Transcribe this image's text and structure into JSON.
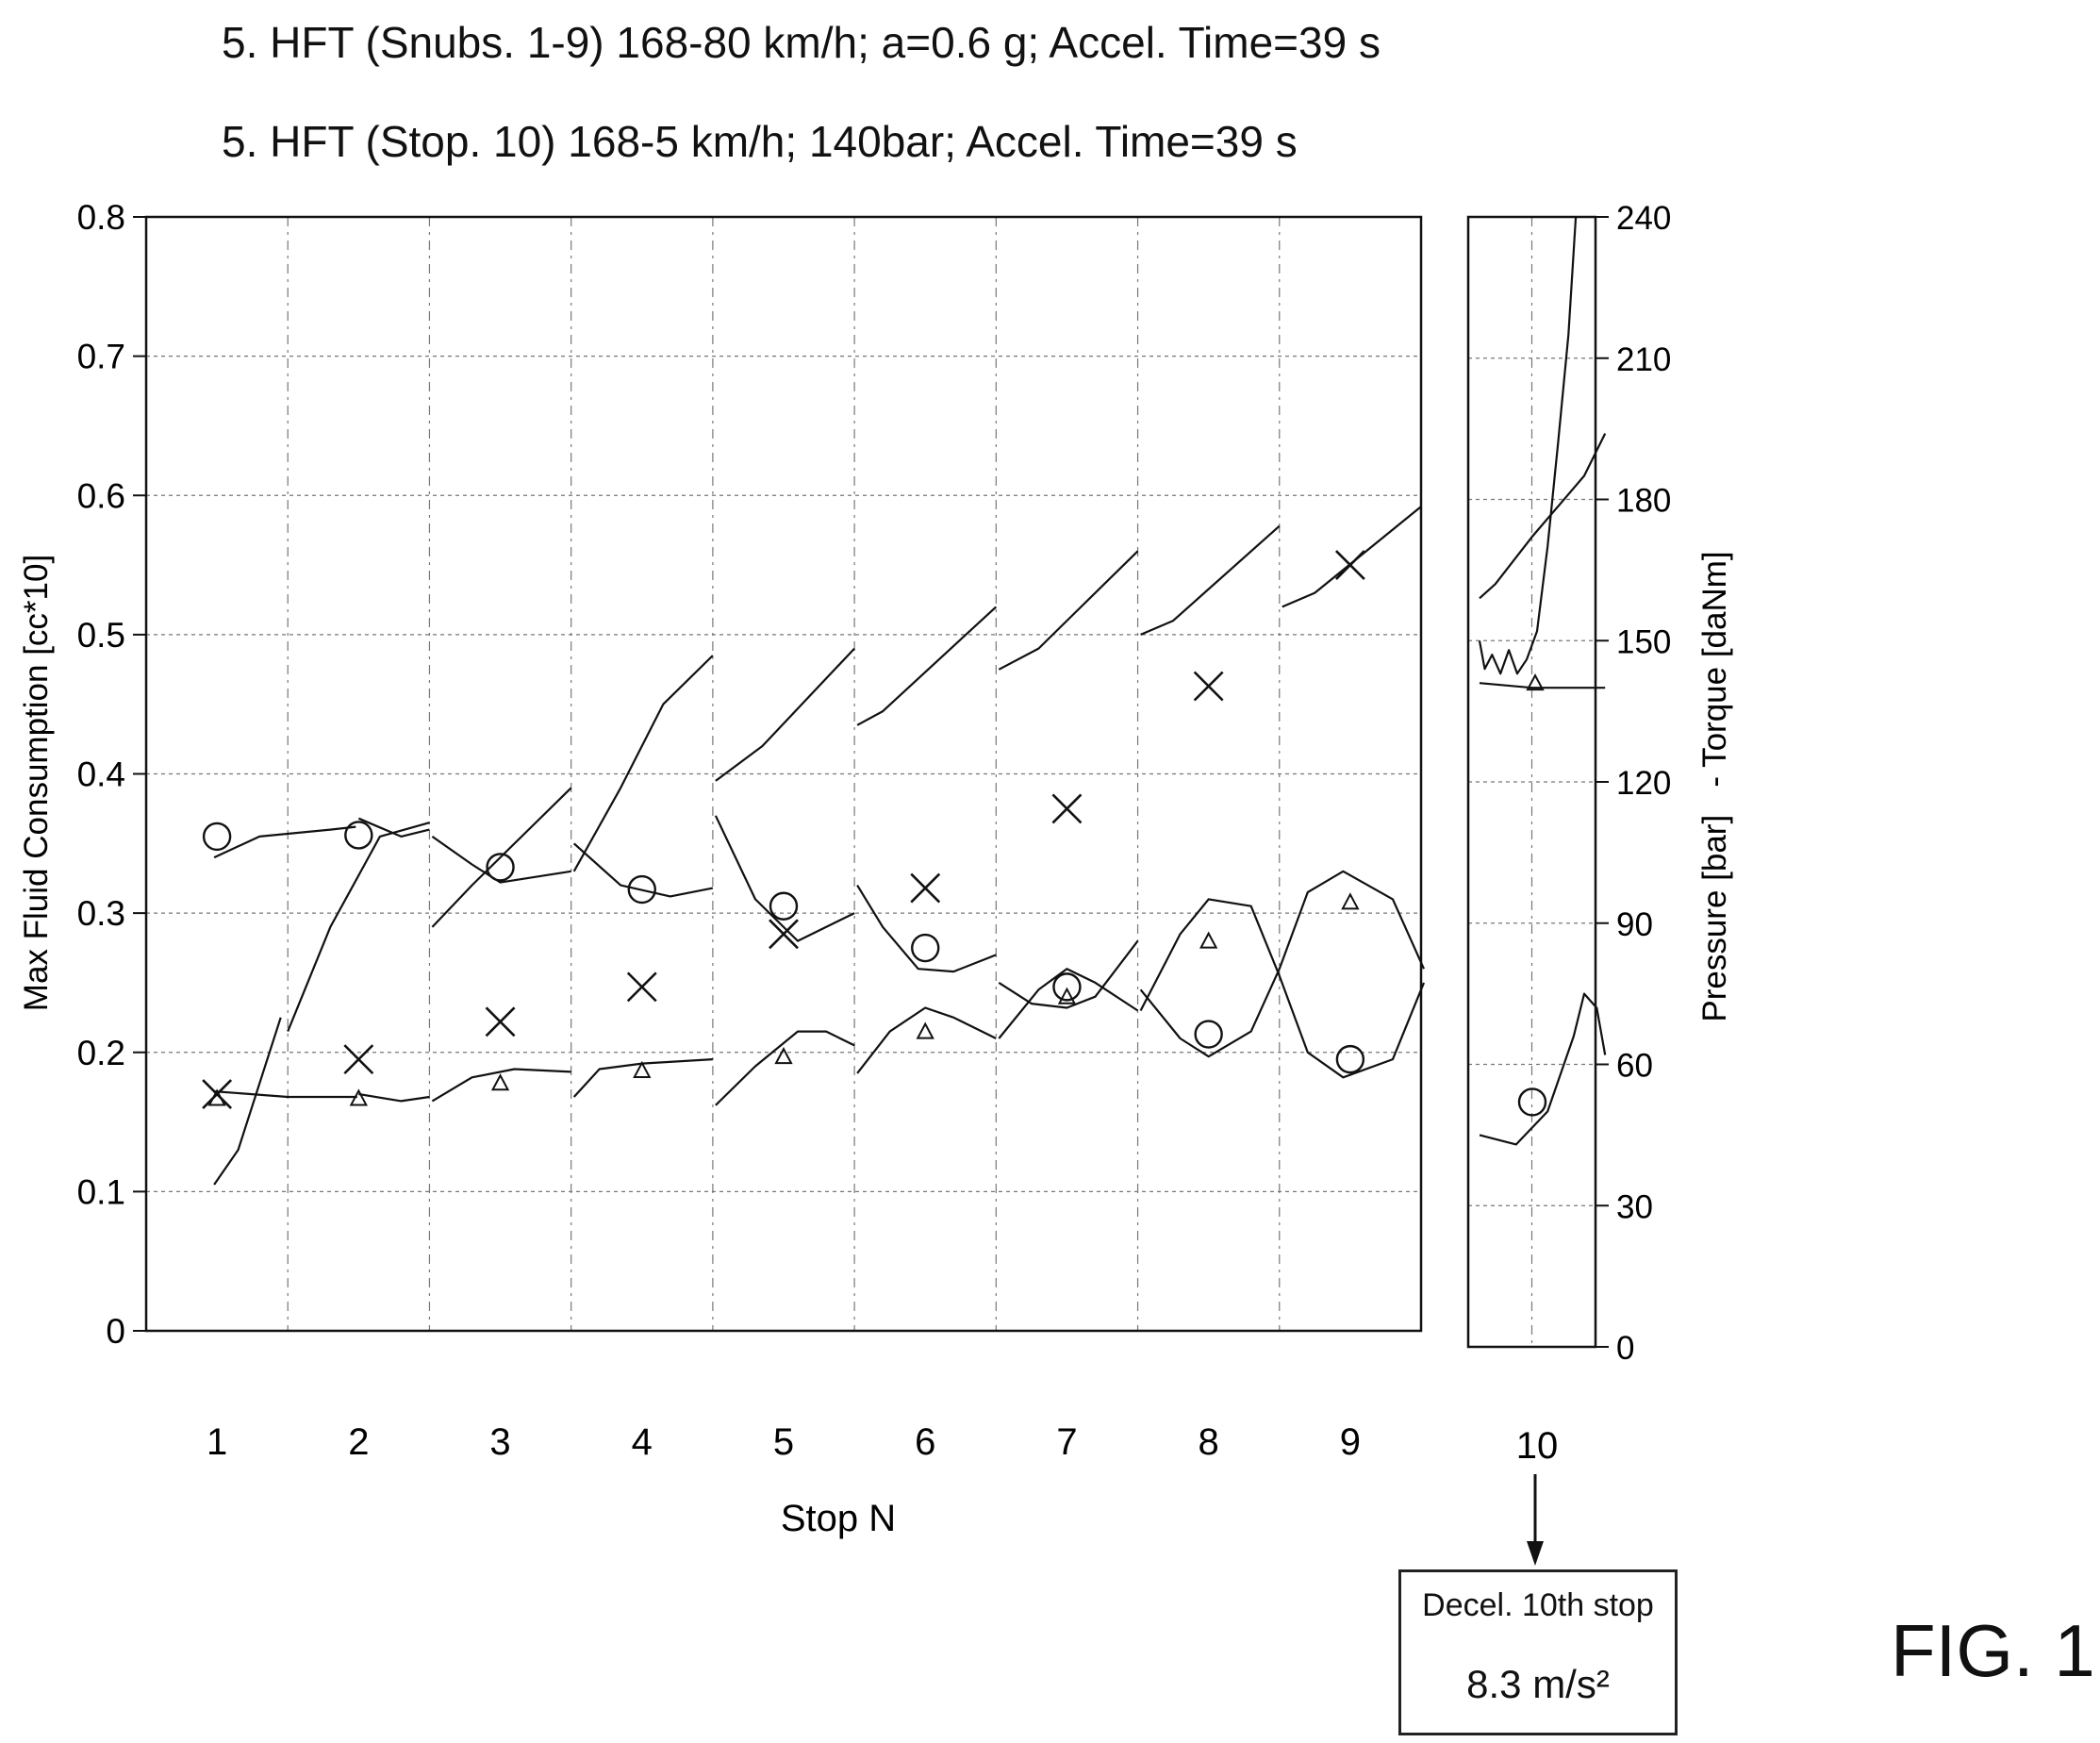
{
  "titles": {
    "line1": "5. HFT  (Snubs. 1-9) 168-80 km/h; a=0.6 g; Accel. Time=39 s",
    "line2": "5. HFT  (Stop. 10) 168-5 km/h; 140bar;  Accel. Time=39 s"
  },
  "figure_label": "FIG. 1",
  "annotation": {
    "line1": "Decel. 10th stop",
    "line2": "8.3 m/s²"
  },
  "chart_data": {
    "type": "line",
    "xlabel": "Stop N",
    "ylabel_left": "Max Fluid Consumption [cc*10]",
    "ylabel_right": "Pressure [bar]   - Torque [daNm]",
    "categories": [
      "1",
      "2",
      "3",
      "4",
      "5",
      "6",
      "7",
      "8",
      "9",
      "10"
    ],
    "ylim_left": [
      0,
      0.8
    ],
    "ylim_right": [
      0,
      240
    ],
    "left_ticks": [
      "0",
      "0.1",
      "0.2",
      "0.3",
      "0.4",
      "0.5",
      "0.6",
      "0.7",
      "0.8"
    ],
    "right_ticks": [
      "0",
      "30",
      "60",
      "90",
      "120",
      "150",
      "180",
      "210",
      "240"
    ],
    "grid": true,
    "markers": {
      "x": [
        0.17,
        0.195,
        0.222,
        0.247,
        0.285,
        0.318,
        0.375,
        0.463,
        0.55
      ],
      "circle": [
        0.355,
        0.356,
        0.333,
        0.317,
        0.305,
        0.275,
        0.247,
        0.213,
        0.195
      ],
      "triangle": [
        0.167,
        0.167,
        0.178,
        0.187,
        0.197,
        0.215,
        0.24,
        0.28,
        0.308
      ],
      "stop10_circle": 52,
      "stop10_triangle": 141
    },
    "traces_left_units": [
      [
        [
          0.98,
          0.105
        ],
        [
          1.15,
          0.13
        ],
        [
          1.45,
          0.225
        ]
      ],
      [
        [
          1.5,
          0.215
        ],
        [
          1.8,
          0.29
        ],
        [
          2.15,
          0.355
        ],
        [
          2.5,
          0.365
        ]
      ],
      [
        [
          2.52,
          0.29
        ],
        [
          2.8,
          0.32
        ],
        [
          3.2,
          0.36
        ],
        [
          3.5,
          0.39
        ]
      ],
      [
        [
          3.52,
          0.33
        ],
        [
          3.85,
          0.39
        ],
        [
          4.15,
          0.45
        ],
        [
          4.5,
          0.485
        ]
      ],
      [
        [
          4.52,
          0.395
        ],
        [
          4.85,
          0.42
        ],
        [
          5.5,
          0.49
        ]
      ],
      [
        [
          5.52,
          0.435
        ],
        [
          5.7,
          0.445
        ],
        [
          6.5,
          0.52
        ]
      ],
      [
        [
          6.52,
          0.475
        ],
        [
          6.8,
          0.49
        ],
        [
          7.5,
          0.56
        ]
      ],
      [
        [
          7.52,
          0.5
        ],
        [
          7.75,
          0.51
        ],
        [
          8.5,
          0.578
        ]
      ],
      [
        [
          8.52,
          0.52
        ],
        [
          8.75,
          0.53
        ],
        [
          9.5,
          0.592
        ]
      ],
      [
        [
          0.98,
          0.34
        ],
        [
          1.3,
          0.355
        ],
        [
          1.8,
          0.36
        ],
        [
          1.98,
          0.362
        ]
      ],
      [
        [
          2.0,
          0.368
        ],
        [
          2.3,
          0.355
        ],
        [
          2.5,
          0.36
        ]
      ],
      [
        [
          2.52,
          0.355
        ],
        [
          2.8,
          0.335
        ],
        [
          3.0,
          0.322
        ],
        [
          3.5,
          0.33
        ]
      ],
      [
        [
          3.52,
          0.35
        ],
        [
          3.85,
          0.32
        ],
        [
          4.2,
          0.312
        ],
        [
          4.5,
          0.318
        ]
      ],
      [
        [
          4.52,
          0.37
        ],
        [
          4.8,
          0.31
        ],
        [
          5.1,
          0.28
        ],
        [
          5.5,
          0.3
        ]
      ],
      [
        [
          5.52,
          0.32
        ],
        [
          5.7,
          0.29
        ],
        [
          5.95,
          0.26
        ],
        [
          6.2,
          0.258
        ],
        [
          6.5,
          0.27
        ]
      ],
      [
        [
          6.52,
          0.25
        ],
        [
          6.75,
          0.235
        ],
        [
          7.0,
          0.232
        ],
        [
          7.2,
          0.24
        ],
        [
          7.5,
          0.28
        ]
      ],
      [
        [
          0.98,
          0.172
        ],
        [
          1.5,
          0.168
        ],
        [
          1.99,
          0.168
        ]
      ],
      [
        [
          2.0,
          0.17
        ],
        [
          2.3,
          0.165
        ],
        [
          2.5,
          0.168
        ]
      ],
      [
        [
          2.52,
          0.165
        ],
        [
          2.8,
          0.182
        ],
        [
          3.1,
          0.188
        ],
        [
          3.5,
          0.186
        ]
      ],
      [
        [
          3.52,
          0.168
        ],
        [
          3.7,
          0.188
        ],
        [
          4.0,
          0.192
        ],
        [
          4.5,
          0.195
        ]
      ],
      [
        [
          4.52,
          0.162
        ],
        [
          4.8,
          0.19
        ],
        [
          5.1,
          0.215
        ],
        [
          5.3,
          0.215
        ],
        [
          5.5,
          0.205
        ]
      ],
      [
        [
          5.52,
          0.185
        ],
        [
          5.75,
          0.215
        ],
        [
          6.0,
          0.232
        ],
        [
          6.2,
          0.225
        ],
        [
          6.5,
          0.21
        ]
      ],
      [
        [
          6.52,
          0.21
        ],
        [
          6.8,
          0.245
        ],
        [
          7.0,
          0.26
        ],
        [
          7.2,
          0.25
        ],
        [
          7.5,
          0.23
        ]
      ],
      [
        [
          7.52,
          0.245
        ],
        [
          7.8,
          0.21
        ],
        [
          8.0,
          0.197
        ],
        [
          8.3,
          0.215
        ],
        [
          8.5,
          0.26
        ],
        [
          8.7,
          0.315
        ],
        [
          8.95,
          0.33
        ],
        [
          9.3,
          0.31
        ],
        [
          9.52,
          0.26
        ]
      ],
      [
        [
          7.52,
          0.23
        ],
        [
          7.8,
          0.285
        ],
        [
          8.0,
          0.31
        ],
        [
          8.3,
          0.305
        ],
        [
          8.5,
          0.255
        ],
        [
          8.7,
          0.2
        ],
        [
          8.95,
          0.182
        ],
        [
          9.3,
          0.195
        ],
        [
          9.52,
          0.25
        ]
      ]
    ],
    "stop10_traces_right_units": [
      [
        [
          0.0,
          159
        ],
        [
          0.15,
          162
        ],
        [
          0.5,
          172
        ],
        [
          1.0,
          185
        ],
        [
          1.2,
          194
        ]
      ],
      [
        [
          0.0,
          150
        ],
        [
          0.05,
          144
        ],
        [
          0.12,
          147
        ],
        [
          0.2,
          143
        ],
        [
          0.28,
          148
        ],
        [
          0.36,
          143
        ],
        [
          0.45,
          146
        ],
        [
          0.55,
          152
        ],
        [
          0.65,
          170
        ],
        [
          0.75,
          192
        ],
        [
          0.85,
          215
        ],
        [
          0.92,
          240
        ]
      ],
      [
        [
          0.0,
          141
        ],
        [
          0.5,
          140
        ],
        [
          1.2,
          140
        ]
      ],
      [
        [
          0.0,
          45
        ],
        [
          0.35,
          43
        ],
        [
          0.65,
          50
        ],
        [
          0.9,
          66
        ],
        [
          1.0,
          75
        ],
        [
          1.12,
          72
        ],
        [
          1.2,
          62
        ]
      ]
    ]
  }
}
